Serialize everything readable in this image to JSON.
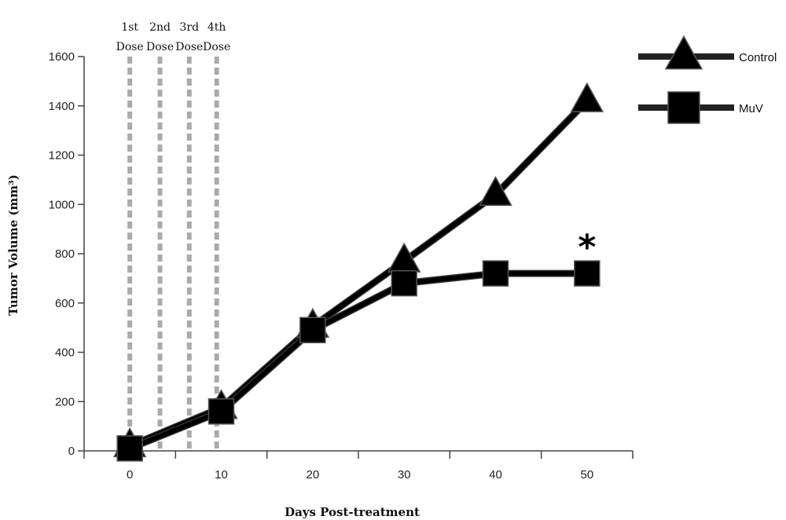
{
  "chart_data": {
    "type": "line",
    "xlabel": "Days Post-treatment",
    "ylabel": "Tumor Volume (mm³)",
    "xlim": [
      -5,
      55
    ],
    "ylim": [
      0,
      1600
    ],
    "x_ticks": [
      0,
      10,
      20,
      30,
      40,
      50
    ],
    "y_ticks": [
      0,
      200,
      400,
      600,
      800,
      1000,
      1200,
      1400,
      1600
    ],
    "grid": false,
    "legend_position": "top-right",
    "series": [
      {
        "name": "Control",
        "marker": "triangle",
        "color": "#000000",
        "x": [
          0,
          10,
          20,
          30,
          40,
          50
        ],
        "y": [
          20,
          175,
          505,
          770,
          1040,
          1420
        ]
      },
      {
        "name": "MuV",
        "marker": "square",
        "color": "#000000",
        "x": [
          0,
          10,
          20,
          30,
          40,
          50
        ],
        "y": [
          10,
          160,
          490,
          680,
          720,
          720
        ]
      }
    ],
    "dose_markers": [
      {
        "x": 0,
        "line1": "1st",
        "line2": "Dose"
      },
      {
        "x": 3.3,
        "line1": "2nd",
        "line2": "Dose"
      },
      {
        "x": 6.5,
        "line1": "3rd",
        "line2": "Dose"
      },
      {
        "x": 9.5,
        "line1": "4th",
        "line2": "Dose"
      }
    ],
    "dose_line_color": "#aaaaaa",
    "annotations": [
      {
        "text": "*",
        "x": 50,
        "y": 850
      }
    ]
  }
}
